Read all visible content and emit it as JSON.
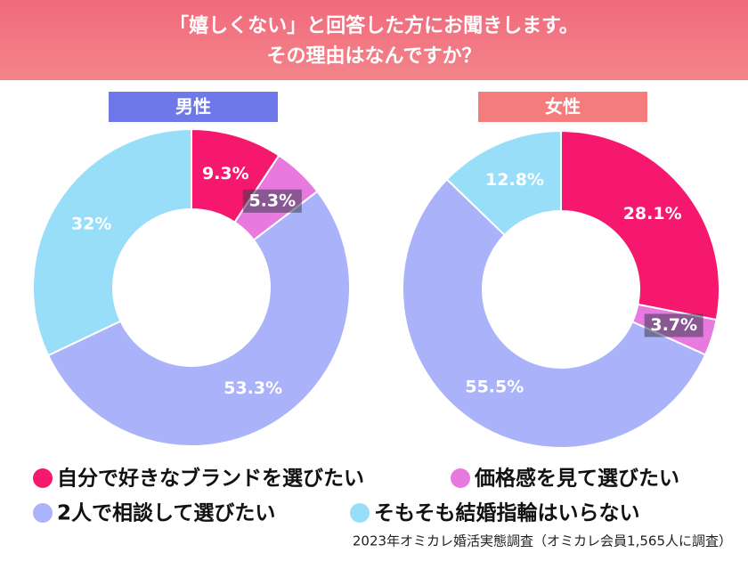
{
  "header": {
    "title_lines": [
      "「嬉しくない」と回答した方にお聞きします。",
      "その理由はなんですか？"
    ]
  },
  "chart_data": [
    {
      "type": "donut",
      "title": "男性",
      "title_color": "#6f78e8",
      "categories": [
        "自分で好きなブランドを選びたい",
        "価格感を見て選びたい",
        "2人で相談して選びたい",
        "そもそも結婚指輪はいらない"
      ],
      "values": [
        9.3,
        5.3,
        53.3,
        32
      ],
      "value_labels": [
        "9.3%",
        "5.3%",
        "53.3%",
        "32%"
      ],
      "colors": [
        "#f5186e",
        "#e779df",
        "#aab2fa",
        "#99def9"
      ]
    },
    {
      "type": "donut",
      "title": "女性",
      "title_color": "#f47c7c",
      "categories": [
        "自分で好きなブランドを選びたい",
        "価格感を見て選びたい",
        "2人で相談して選びたい",
        "そもそも結婚指輪はいらない"
      ],
      "values": [
        28.1,
        3.7,
        55.5,
        12.8
      ],
      "value_labels": [
        "28.1%",
        "3.7%",
        "55.5%",
        "12.8%"
      ],
      "colors": [
        "#f5186e",
        "#e779df",
        "#aab2fa",
        "#99def9"
      ]
    }
  ],
  "source": "2023年オミカレ婚活実態調査（オミカレ会員1,565人に調査）"
}
